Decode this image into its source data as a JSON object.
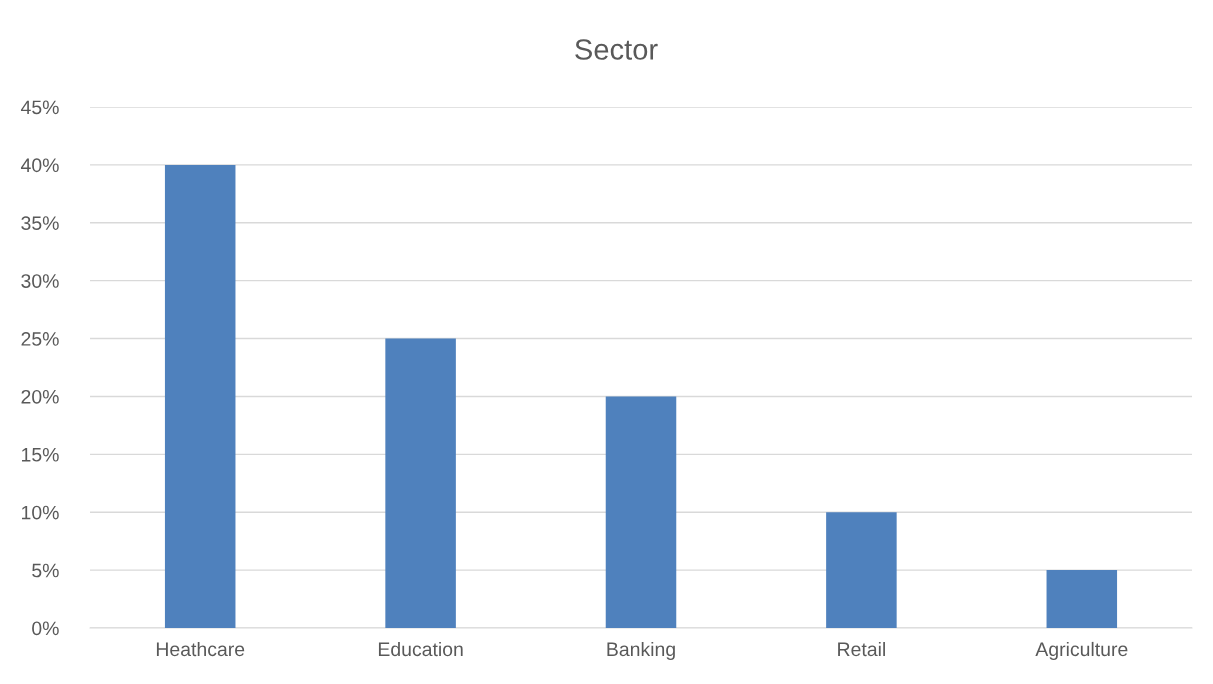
{
  "chart_data": {
    "type": "bar",
    "title": "Sector",
    "categories": [
      "Heathcare",
      "Education",
      "Banking",
      "Retail",
      "Agriculture"
    ],
    "values": [
      40,
      25,
      20,
      10,
      5
    ],
    "color": "#4f81bd",
    "ylim": [
      0,
      45
    ],
    "yticks": [
      {
        "value": 0,
        "label": "0%"
      },
      {
        "value": 5,
        "label": "5%"
      },
      {
        "value": 10,
        "label": "10%"
      },
      {
        "value": 15,
        "label": "15%"
      },
      {
        "value": 20,
        "label": "20%"
      },
      {
        "value": 25,
        "label": "25%"
      },
      {
        "value": 30,
        "label": "30%"
      },
      {
        "value": 35,
        "label": "35%"
      },
      {
        "value": 40,
        "label": "40%"
      },
      {
        "value": 45,
        "label": "45%"
      }
    ],
    "grid": "y",
    "legend": false
  }
}
